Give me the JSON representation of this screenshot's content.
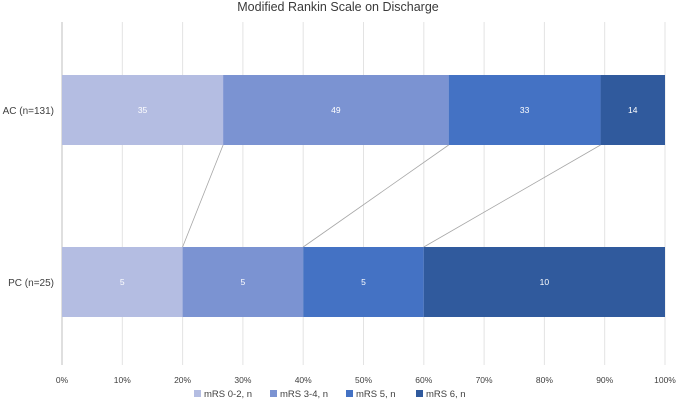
{
  "chart_data": {
    "type": "bar",
    "orientation": "horizontal",
    "stacked": true,
    "normalized": true,
    "title": "Modified Rankin Scale on Discharge",
    "categories": [
      "AC (n=131)",
      "PC (n=25)"
    ],
    "series": [
      {
        "name": "mRS 0-2, n",
        "values": [
          35,
          5
        ],
        "color": "#b4bde2"
      },
      {
        "name": "mRS 3-4, n",
        "values": [
          49,
          5
        ],
        "color": "#7b93d2"
      },
      {
        "name": "mRS 5, n",
        "values": [
          33,
          5
        ],
        "color": "#4472c4"
      },
      {
        "name": "mRS 6, n",
        "values": [
          14,
          10
        ],
        "color": "#305a9d"
      }
    ],
    "xlabel": "",
    "ylabel": "",
    "xlim": [
      0,
      100
    ],
    "xticks": [
      "0%",
      "10%",
      "20%",
      "30%",
      "40%",
      "50%",
      "60%",
      "70%",
      "80%",
      "90%",
      "100%"
    ],
    "grid": true,
    "series_lines": true,
    "legend_position": "bottom"
  }
}
